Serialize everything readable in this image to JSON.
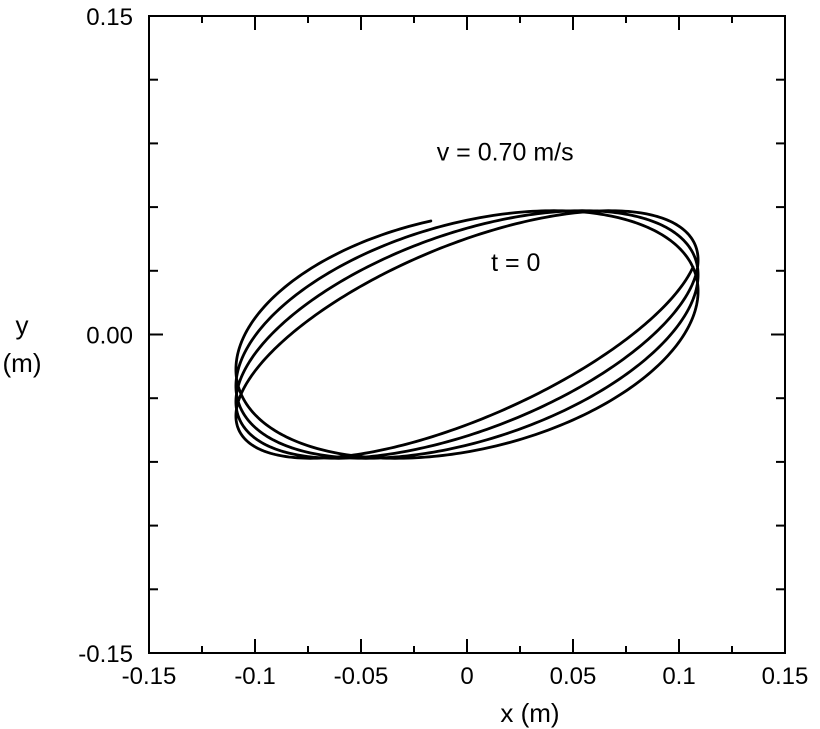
{
  "chart_data": {
    "type": "line",
    "title": "",
    "xlabel": "x (m)",
    "ylabel_line1": "y",
    "ylabel_line2": "(m)",
    "xlim": [
      -0.15,
      0.15
    ],
    "ylim": [
      -0.15,
      0.15
    ],
    "grid": false,
    "x_ticks": [
      -0.15,
      -0.1,
      -0.05,
      0,
      0.05,
      0.1,
      0.15
    ],
    "x_tick_labels": [
      "-0.15",
      "-0.1",
      "-0.05",
      "0",
      "0.05",
      "0.1",
      "0.15"
    ],
    "y_ticks": [
      -0.15,
      0,
      0.15
    ],
    "y_tick_labels": [
      "-0.15",
      "0.00",
      "0.15"
    ],
    "y_minor_ticks": [
      -0.12,
      -0.09,
      -0.06,
      -0.03,
      0.03,
      0.06,
      0.09,
      0.12
    ],
    "x_minor_ticks": [
      -0.125,
      -0.075,
      -0.025,
      0.025,
      0.075,
      0.125
    ],
    "annotations": [
      {
        "text": "v = 0.70 m/s",
        "x": 0.018,
        "y": 0.082
      },
      {
        "text": "t = 0",
        "x": 0.023,
        "y": 0.03
      }
    ],
    "trajectory": {
      "description": "precessing ellipse traced over ~3.75 turns",
      "center": [
        0.0,
        0.0
      ],
      "node_point": [
        0.018,
        0.048
      ],
      "semi_axis_x": 0.109,
      "semi_axis_y": 0.0583,
      "phase_start_deg": 99.0,
      "phase_end_deg": 1428.0,
      "phase_offset_deg": 14.5,
      "phase_offset_end_deg": 45.0,
      "points_count": 1200
    }
  }
}
